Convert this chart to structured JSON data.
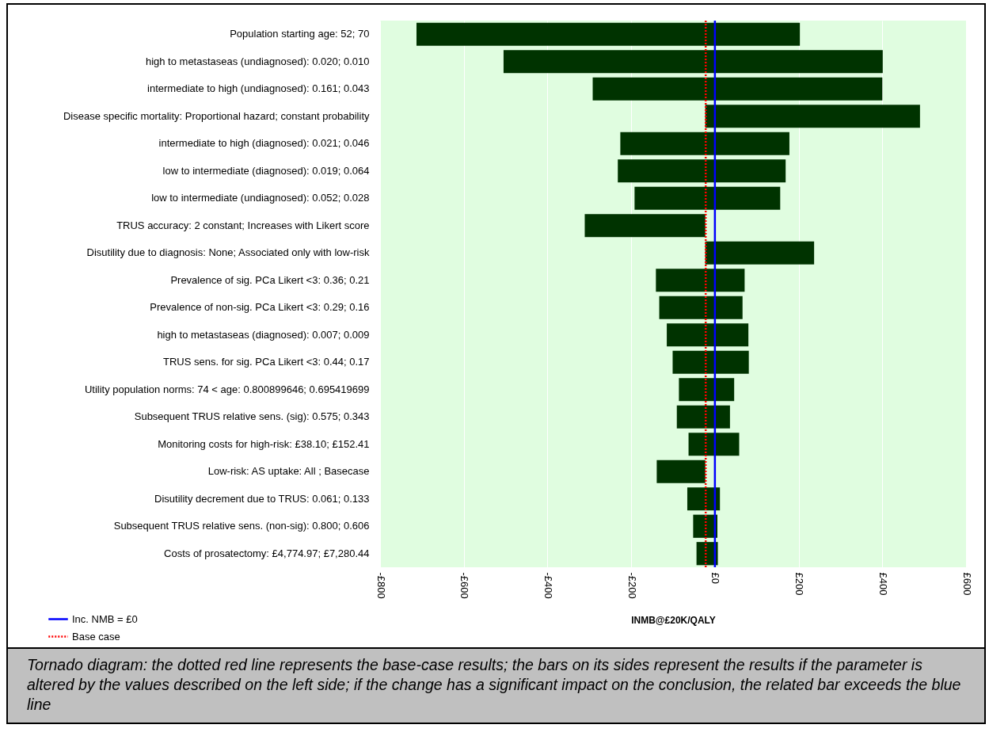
{
  "chart_data": {
    "type": "bar",
    "orientation": "horizontal",
    "xlabel": "INMB@£20K/QALY",
    "categories": [
      "Population starting age: 52; 70",
      "high to metastaseas (undiagnosed): 0.020; 0.010",
      "intermediate to high (undiagnosed): 0.161; 0.043",
      "Disease specific mortality: Proportional hazard; constant probability",
      "intermediate to high (diagnosed): 0.021; 0.046",
      "low to intermediate (diagnosed): 0.019; 0.064",
      "low to intermediate (undiagnosed): 0.052; 0.028",
      "TRUS accuracy: 2 constant; Increases with Likert score",
      "Disutility due to diagnosis: None; Associated only with low-risk",
      "Prevalence of sig. PCa Likert <3: 0.36; 0.21",
      "Prevalence of non-sig. PCa Likert <3: 0.29; 0.16",
      "high to metastaseas (diagnosed): 0.007; 0.009",
      "TRUS sens. for sig. PCa Likert <3: 0.44; 0.17",
      "Utility population norms:  74 < age: 0.800899646; 0.695419699",
      "Subsequent TRUS relative sens. (sig): 0.575; 0.343",
      "Monitoring costs for high-risk: £38.10; £152.41",
      "Low-risk: AS uptake: All ; Basecase",
      "Disutility decrement due to TRUS: 0.061; 0.133",
      "Subsequent TRUS relative sens. (non-sig): 0.800; 0.606",
      "Costs of prosatectomy: £4,774.97; £7,280.44"
    ],
    "base": [
      -713,
      -505,
      -292,
      -23,
      -226,
      -232,
      -192,
      -311,
      -23,
      -141,
      -133,
      -115,
      -101,
      -86,
      -91,
      -63,
      -139,
      -66,
      -52,
      -44
    ],
    "values": [
      916,
      906,
      692,
      513,
      404,
      401,
      348,
      288,
      260,
      212,
      199,
      195,
      182,
      132,
      127,
      121,
      116,
      78,
      58,
      51
    ],
    "color": "#003300",
    "xlim": [
      -800,
      600
    ],
    "xticks": [
      {
        "value": -800,
        "label": "-£800"
      },
      {
        "value": -600,
        "label": "-£600"
      },
      {
        "value": -400,
        "label": "-£400"
      },
      {
        "value": -200,
        "label": "-£200"
      },
      {
        "value": 0,
        "label": "£0"
      },
      {
        "value": 200,
        "label": "£200"
      },
      {
        "value": 400,
        "label": "£400"
      },
      {
        "value": 600,
        "label": "£600"
      }
    ],
    "grid": "x",
    "legend": "bottom left",
    "ref_lines": [
      {
        "axis": "x",
        "value": 0,
        "label": "Inc. NMB = £0",
        "color": "#0000ff",
        "line_style": "solid"
      },
      {
        "axis": "x",
        "value": -22,
        "label": "Base case",
        "color": "#ff0000",
        "line_style": "dotted"
      }
    ],
    "annotations": [
      "Tornado diagram: the dotted red line represents the base-case results; the bars on its sides represent the results if the parameter is altered by the values described on the left side; if the change has a significant impact on the conclusion, the related bar exceeds the blue line"
    ]
  }
}
